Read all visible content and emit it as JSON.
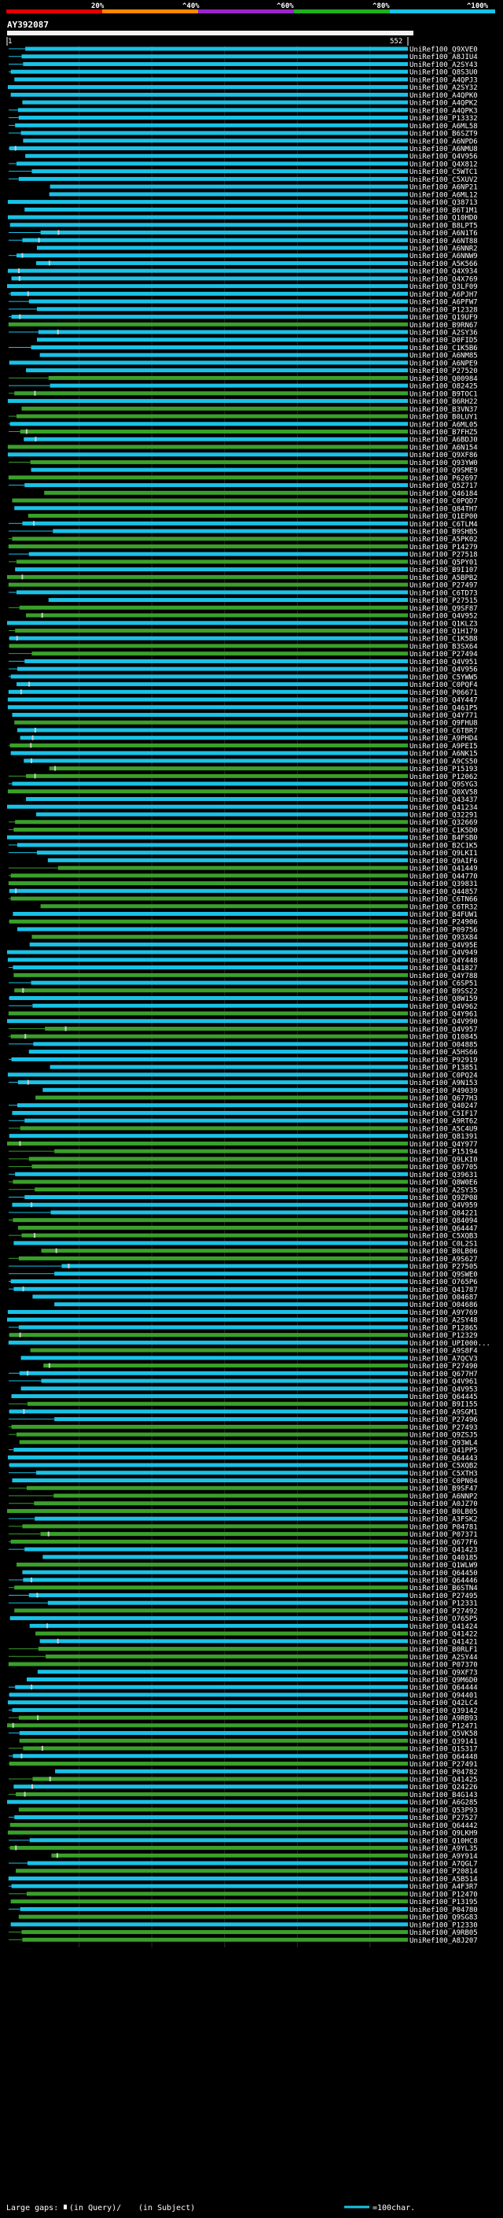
{
  "header": {
    "legend_ticks": [
      "20%",
      "^40%",
      "^60%",
      "^80%",
      "^100%"
    ],
    "query_id": "AY392087",
    "axis_start": "1",
    "axis_end": "552"
  },
  "colors": {
    "background": "#000000",
    "hit_strong": "#19c2e6",
    "hit_medium": "#3aa02a",
    "gap": "#cccccc",
    "legend": [
      "#e00000",
      "#ff8800",
      "#9a26c8",
      "#1fb01f",
      "#19c2e6"
    ]
  },
  "footer": {
    "large_gaps_label": "Large gaps:",
    "query_gap_label": "(in Query)/",
    "subject_gap_label": "(in Subject)",
    "scale_label": "=100char."
  },
  "chart_data": {
    "type": "alignment-overview",
    "title": "AY392087",
    "query_length": 552,
    "x_range": [
      1,
      552
    ],
    "categories": [
      "UniRef100_Q9XVE0",
      "UniRef100_A8JIU4",
      "UniRef100_A2SY43",
      "UniRef100_Q8S3U0",
      "UniRef100_A4QPJ3",
      "UniRef100_A2SY32",
      "UniRef100_A4QPK0",
      "UniRef100_A4QPK2",
      "UniRef100_A4QPK3",
      "UniRef100_P13332",
      "UniRef100_A6ML58",
      "UniRef100_B6SZT9",
      "UniRef100_A6NPD6",
      "UniRef100_A6NMU8",
      "UniRef100_Q4V956",
      "UniRef100_Q4X812",
      "UniRef100_C5WTC1",
      "UniRef100_C5XUV2",
      "UniRef100_A6NP21",
      "UniRef100_A6ML12",
      "UniRef100_Q38713",
      "UniRef100_B6T1M1",
      "UniRef100_Q10HD0",
      "UniRef100_B8LPT5",
      "UniRef100_A6N1T6",
      "UniRef100_A6NT88",
      "UniRef100_A6NNR2",
      "UniRef100_A6NNW9",
      "UniRef100_A5K566",
      "UniRef100_Q4X934",
      "UniRef100_Q4X769",
      "UniRef100_Q3LF09",
      "UniRef100_A6PJH7",
      "UniRef100_A6PFW7",
      "UniRef100_P12328",
      "UniRef100_Q19UF9",
      "UniRef100_B9RN67",
      "UniRef100_A2SY36",
      "UniRef100_D0FID5",
      "UniRef100_C1K5B6",
      "UniRef100_A6NM85",
      "UniRef100_A6NPE9",
      "UniRef100_P27520",
      "UniRef100_Q00984",
      "UniRef100_O82425",
      "UniRef100_B9TOC1",
      "UniRef100_B6RH22",
      "UniRef100_B3VN37",
      "UniRef100_B0LUY1",
      "UniRef100_A6ML05",
      "UniRef100_B7FHZ5",
      "UniRef100_A6BDJ0",
      "UniRef100_A6N154",
      "UniRef100_Q9XF86",
      "UniRef100_Q93YW0",
      "UniRef100_Q9SME9",
      "UniRef100_P62697",
      "UniRef100_Q5Z717",
      "UniRef100_Q46184",
      "UniRef100_C0PQD7",
      "UniRef100_Q84TH7",
      "UniRef100_Q1EP00",
      "UniRef100_C6TLM4",
      "UniRef100_B9SHB5",
      "UniRef100_A5PK02",
      "UniRef100_P14279",
      "UniRef100_P27518",
      "UniRef100_Q5PY01",
      "UniRef100_B9I107",
      "UniRef100_A5BPB2",
      "UniRef100_P27497",
      "UniRef100_C6TD73",
      "UniRef100_P27515",
      "UniRef100_Q9SF87",
      "UniRef100_Q4V952",
      "UniRef100_Q1KLZ3",
      "UniRef100_Q1H179",
      "UniRef100_C1K5B8",
      "UniRef100_B3SX64",
      "UniRef100_P27494",
      "UniRef100_Q4V951",
      "UniRef100_Q4V956",
      "UniRef100_C5YWW5",
      "UniRef100_C0PQF4",
      "UniRef100_P06671",
      "UniRef100_Q4Y447",
      "UniRef100_Q461P5",
      "UniRef100_Q4Y771",
      "UniRef100_Q9FHU8",
      "UniRef100_C6TBR7",
      "UniRef100_A9PHD4",
      "UniRef100_A9PEI5",
      "UniRef100_A6NK15",
      "UniRef100_A9CS50",
      "UniRef100_P15193",
      "UniRef100_P12062",
      "UniRef100_Q9SYG3",
      "UniRef100_Q0XV58",
      "UniRef100_Q43437",
      "UniRef100_Q41234",
      "UniRef100_Q32291",
      "UniRef100_Q32669",
      "UniRef100_C1K5D0",
      "UniRef100_B4FSB0",
      "UniRef100_B2C1K5",
      "UniRef100_Q9LKI1",
      "UniRef100_Q9AIF6",
      "UniRef100_Q41449",
      "UniRef100_Q44770",
      "UniRef100_Q39831",
      "UniRef100_Q44857",
      "UniRef100_C6TN66",
      "UniRef100_C6TR32",
      "UniRef100_B4FUW1",
      "UniRef100_P24906",
      "UniRef100_P09756",
      "UniRef100_Q93X84",
      "UniRef100_Q4V95E",
      "UniRef100_Q4V949",
      "UniRef100_Q4Y448",
      "UniRef100_Q41827",
      "UniRef100_Q4Y788",
      "UniRef100_C6SP51",
      "UniRef100_B9SS22",
      "UniRef100_Q8W159",
      "UniRef100_Q4V962",
      "UniRef100_Q4Y961",
      "UniRef100_Q4V990",
      "UniRef100_Q4V957",
      "UniRef100_Q10845",
      "UniRef100_O04885",
      "UniRef100_A5HS66",
      "UniRef100_P92919",
      "UniRef100_P13851",
      "UniRef100_C0PQ24",
      "UniRef100_A9N153",
      "UniRef100_P49039",
      "UniRef100_Q677H3",
      "UniRef100_Q40247",
      "UniRef100_C5IF17",
      "UniRef100_A9RT62",
      "UniRef100_A5C4U9",
      "UniRef100_Q81391",
      "UniRef100_Q4Y977",
      "UniRef100_P15194",
      "UniRef100_Q9LKI0",
      "UniRef100_Q67705",
      "UniRef100_Q39631",
      "UniRef100_Q8W0E6",
      "UniRef100_A2SY35",
      "UniRef100_Q9ZP08",
      "UniRef100_Q4V959",
      "UniRef100_Q84221",
      "UniRef100_Q84094",
      "UniRef100_Q64447",
      "UniRef100_C5XQB3",
      "UniRef100_C0L2S1",
      "UniRef100_B0LB06",
      "UniRef100_A9S627",
      "UniRef100_P27505",
      "UniRef100_Q9SWE0",
      "UniRef100_O765P6",
      "UniRef100_Q41787",
      "UniRef100_O04687",
      "UniRef100_O04686",
      "UniRef100_A9Y769",
      "UniRef100_A2SY48",
      "UniRef100_P12865",
      "UniRef100_P12329",
      "UniRef100_UPI000...",
      "UniRef100_A9S8F4",
      "UniRef100_A7QCV3",
      "UniRef100_P27490",
      "UniRef100_Q677H7",
      "UniRef100_Q4V961",
      "UniRef100_Q4V953",
      "UniRef100_Q64445",
      "UniRef100_B9I155",
      "UniRef100_A9SGM1",
      "UniRef100_P27496",
      "UniRef100_P27493",
      "UniRef100_Q9ZSJ5",
      "UniRef100_Q93WL4",
      "UniRef100_Q41PP5",
      "UniRef100_Q64443",
      "UniRef100_C5XQB2",
      "UniRef100_C5XTH3",
      "UniRef100_C0PN04",
      "UniRef100_B9SF47",
      "UniRef100_A6NNP2",
      "UniRef100_A0JZ70",
      "UniRef100_B0LB05",
      "UniRef100_A3FSK2",
      "UniRef100_P04781",
      "UniRef100_P07371",
      "UniRef100_Q677F6",
      "UniRef100_Q41423",
      "UniRef100_Q40185",
      "UniRef100_Q1WLW9",
      "UniRef100_Q64450",
      "UniRef100_Q64446",
      "UniRef100_B6STN4",
      "UniRef100_P27495",
      "UniRef100_P12331",
      "UniRef100_P27492",
      "UniRef100_O765P5",
      "UniRef100_Q41424",
      "UniRef100_Q41422",
      "UniRef100_Q41421",
      "UniRef100_B0RLF1",
      "UniRef100_A2SY44",
      "UniRef100_P07370",
      "UniRef100_Q9XF73",
      "UniRef100_Q9M6D0",
      "UniRef100_Q64444",
      "UniRef100_Q94401",
      "UniRef100_Q42LC4",
      "UniRef100_Q39142",
      "UniRef100_A9RB93",
      "UniRef100_P12471",
      "UniRef100_Q5VK58",
      "UniRef100_Q39141",
      "UniRef100_Q1S317",
      "UniRef100_Q64448",
      "UniRef100_P27491",
      "UniRef100_P04782",
      "UniRef100_Q41425",
      "UniRef100_Q24226",
      "UniRef100_B4G143",
      "UniRef100_A6G285",
      "UniRef100_Q53P93",
      "UniRef100_P27527",
      "UniRef100_Q64442",
      "UniRef100_Q9LKH9",
      "UniRef100_Q10HC8",
      "UniRef100_A9YL35",
      "UniRef100_A9Y914",
      "UniRef100_A7QGL7",
      "UniRef100_P20814",
      "UniRef100_A5B514",
      "UniRef100_A4F3R7",
      "UniRef100_P12470",
      "UniRef100_P13195",
      "UniRef100_P04780",
      "UniRef100_Q9SG83",
      "UniRef100_P12330",
      "UniRef100_A9RB05",
      "UniRef100_A8J207"
    ]
  }
}
